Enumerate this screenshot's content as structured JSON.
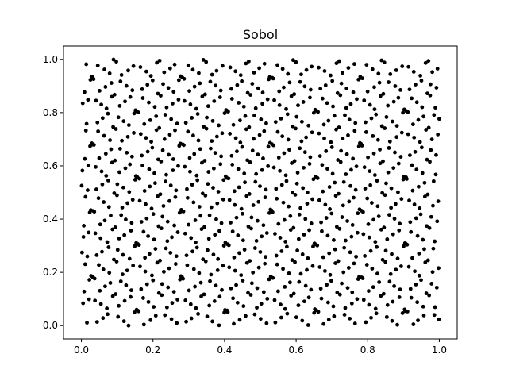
{
  "chart_data": {
    "type": "scatter",
    "title": "Sobol",
    "xlabel": "",
    "ylabel": "",
    "xlim": [
      -0.05,
      1.05
    ],
    "ylim": [
      -0.05,
      1.05
    ],
    "xticks": [
      0.0,
      0.2,
      0.4,
      0.6,
      0.8,
      1.0
    ],
    "xtick_labels": [
      "0.0",
      "0.2",
      "0.4",
      "0.6",
      "0.8",
      "1.0"
    ],
    "yticks": [
      0.0,
      0.2,
      0.4,
      0.6,
      0.8,
      1.0
    ],
    "ytick_labels": [
      "0.0",
      "0.2",
      "0.4",
      "0.6",
      "0.8",
      "1.0"
    ],
    "grid": false,
    "legend": "none",
    "marker_color": "#000000",
    "point_count": 1024,
    "points_description": "1024 quasi-random low-discrepancy points in the unit square"
  }
}
